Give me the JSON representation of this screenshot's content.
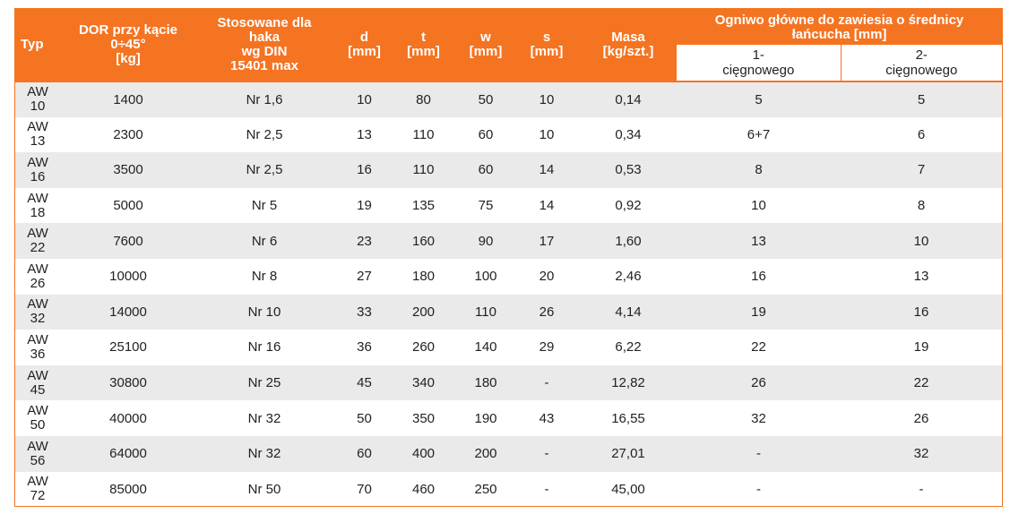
{
  "headers": {
    "typ": "Typ",
    "dor": [
      "DOR przy kącie",
      "0÷45°",
      "[kg]"
    ],
    "hook": [
      "Stosowane dla",
      "haka",
      "wg DIN",
      "15401 max"
    ],
    "d": [
      "d",
      "[mm]"
    ],
    "t": [
      "t",
      "[mm]"
    ],
    "w": [
      "w",
      "[mm]"
    ],
    "s": [
      "s",
      "[mm]"
    ],
    "masa": [
      "Masa",
      "[kg/szt.]"
    ],
    "group": [
      "Ogniwo główne do zawiesia o średnicy",
      "łańcucha [mm]"
    ],
    "sub1": [
      "1-",
      "cięgnowego"
    ],
    "sub2": [
      "2-",
      "cięgnowego"
    ]
  },
  "rows": [
    {
      "typ": [
        "AW",
        "10"
      ],
      "dor": "1400",
      "hook": "Nr 1,6",
      "d": "10",
      "t": "80",
      "w": "50",
      "s": "10",
      "masa": "0,14",
      "c1": "5",
      "c2": "5"
    },
    {
      "typ": [
        "AW",
        "13"
      ],
      "dor": "2300",
      "hook": "Nr 2,5",
      "d": "13",
      "t": "110",
      "w": "60",
      "s": "10",
      "masa": "0,34",
      "c1": "6+7",
      "c2": "6"
    },
    {
      "typ": [
        "AW",
        "16"
      ],
      "dor": "3500",
      "hook": "Nr 2,5",
      "d": "16",
      "t": "110",
      "w": "60",
      "s": "14",
      "masa": "0,53",
      "c1": "8",
      "c2": "7"
    },
    {
      "typ": [
        "AW",
        "18"
      ],
      "dor": "5000",
      "hook": "Nr 5",
      "d": "19",
      "t": "135",
      "w": "75",
      "s": "14",
      "masa": "0,92",
      "c1": "10",
      "c2": "8"
    },
    {
      "typ": [
        "AW",
        "22"
      ],
      "dor": "7600",
      "hook": "Nr 6",
      "d": "23",
      "t": "160",
      "w": "90",
      "s": "17",
      "masa": "1,60",
      "c1": "13",
      "c2": "10"
    },
    {
      "typ": [
        "AW",
        "26"
      ],
      "dor": "10000",
      "hook": "Nr 8",
      "d": "27",
      "t": "180",
      "w": "100",
      "s": "20",
      "masa": "2,46",
      "c1": "16",
      "c2": "13"
    },
    {
      "typ": [
        "AW",
        "32"
      ],
      "dor": "14000",
      "hook": "Nr 10",
      "d": "33",
      "t": "200",
      "w": "110",
      "s": "26",
      "masa": "4,14",
      "c1": "19",
      "c2": "16"
    },
    {
      "typ": [
        "AW",
        "36"
      ],
      "dor": "25100",
      "hook": "Nr 16",
      "d": "36",
      "t": "260",
      "w": "140",
      "s": "29",
      "masa": "6,22",
      "c1": "22",
      "c2": "19"
    },
    {
      "typ": [
        "AW",
        "45"
      ],
      "dor": "30800",
      "hook": "Nr 25",
      "d": "45",
      "t": "340",
      "w": "180",
      "s": "-",
      "masa": "12,82",
      "c1": "26",
      "c2": "22"
    },
    {
      "typ": [
        "AW",
        "50"
      ],
      "dor": "40000",
      "hook": "Nr 32",
      "d": "50",
      "t": "350",
      "w": "190",
      "s": "43",
      "masa": "16,55",
      "c1": "32",
      "c2": "26"
    },
    {
      "typ": [
        "AW",
        "56"
      ],
      "dor": "64000",
      "hook": "Nr 32",
      "d": "60",
      "t": "400",
      "w": "200",
      "s": "-",
      "masa": "27,01",
      "c1": "-",
      "c2": "32"
    },
    {
      "typ": [
        "AW",
        "72"
      ],
      "dor": "85000",
      "hook": "Nr 50",
      "d": "70",
      "t": "460",
      "w": "250",
      "s": "-",
      "masa": "45,00",
      "c1": "-",
      "c2": "-"
    }
  ]
}
